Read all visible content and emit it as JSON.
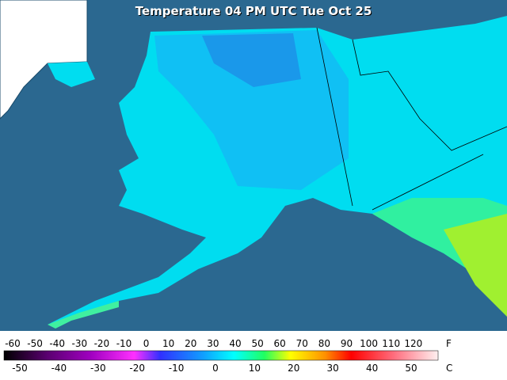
{
  "title": "Temperature 04 PM UTC Tue Oct 25",
  "legend": {
    "fahrenheit": {
      "unit": "F",
      "ticks": [
        -60,
        -50,
        -40,
        -30,
        -20,
        -10,
        0,
        10,
        20,
        30,
        40,
        50,
        60,
        70,
        80,
        90,
        100,
        110,
        120
      ]
    },
    "celsius": {
      "unit": "C",
      "ticks": [
        -50,
        -40,
        -30,
        -20,
        -10,
        0,
        10,
        20,
        30,
        40,
        50
      ]
    }
  }
}
